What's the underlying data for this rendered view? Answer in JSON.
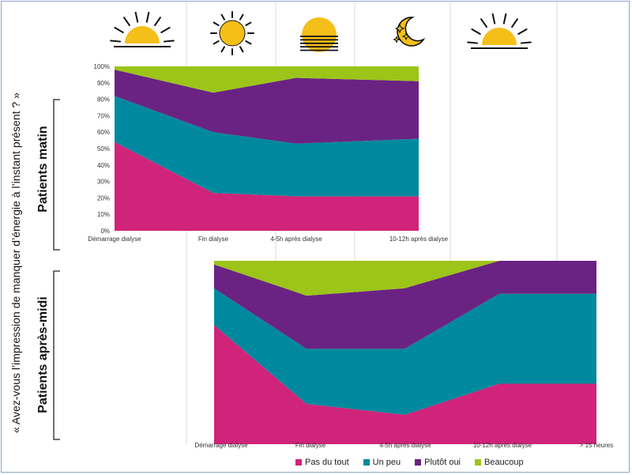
{
  "question": "« Avez-vous l’impression de manquer d’énergie à l’instant présent ? »",
  "labels": {
    "morning": "Patients matin",
    "afternoon": "Patients après-midi"
  },
  "icons": [
    "sunrise-icon",
    "sun-icon",
    "sunset-icon",
    "moon-stars-icon",
    "sunrise-icon"
  ],
  "colors": {
    "pas_du_tout": "#d0237a",
    "un_peu": "#00899e",
    "plutot_oui": "#6a2382",
    "beaucoup": "#9cc419",
    "icon_fill": "#f5bf1a",
    "gridline": "#d9d9d9"
  },
  "legend": [
    {
      "name": "Pas du tout",
      "color": "#d0237a"
    },
    {
      "name": "Un peu",
      "color": "#00899e"
    },
    {
      "name": "Plutôt oui",
      "color": "#6a2382"
    },
    {
      "name": "Beaucoup",
      "color": "#9cc419"
    }
  ],
  "chart_data": [
    {
      "type": "area",
      "stacked": true,
      "categories": [
        "Démarrage dialyse",
        "Fin dialyse",
        "4-5h après dialyse",
        "10-12h après dialyse"
      ],
      "y_ticks": [
        "0%",
        "10%",
        "20%",
        "30%",
        "40%",
        "50%",
        "60%",
        "70%",
        "80%",
        "90%",
        "100%"
      ],
      "ylim": [
        0,
        100
      ],
      "series": [
        {
          "name": "Pas du tout",
          "values": [
            54,
            23,
            21,
            21
          ]
        },
        {
          "name": "Un peu",
          "values": [
            28,
            37,
            32,
            35
          ]
        },
        {
          "name": "Plutôt oui",
          "values": [
            16,
            24,
            40,
            35
          ]
        },
        {
          "name": "Beaucoup",
          "values": [
            2,
            16,
            7,
            9
          ]
        }
      ]
    },
    {
      "type": "area",
      "stacked": true,
      "categories": [
        "Démarrage dialyse",
        "Fin dialyse",
        "4-5h après dialyse",
        "10-12h après dialyse",
        "> 15 heures"
      ],
      "ylim": [
        0,
        100
      ],
      "series": [
        {
          "name": "Pas du tout",
          "values": [
            65,
            22,
            16,
            33,
            33
          ]
        },
        {
          "name": "Un peu",
          "values": [
            20,
            30,
            36,
            49,
            49
          ]
        },
        {
          "name": "Plutôt oui",
          "values": [
            13,
            29,
            33,
            18,
            18
          ]
        },
        {
          "name": "Beaucoup",
          "values": [
            2,
            19,
            15,
            0,
            0
          ]
        }
      ]
    }
  ]
}
